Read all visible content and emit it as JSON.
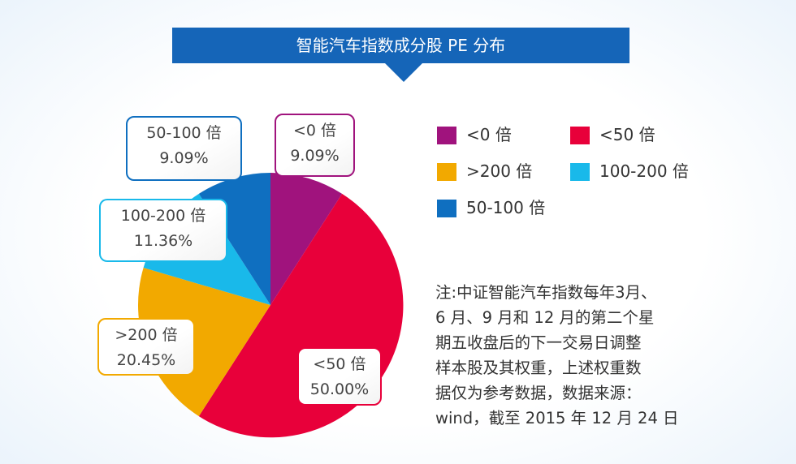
{
  "chart_data": {
    "type": "pie",
    "title": "智能汽车指数成分股 PE 分布",
    "slices": [
      {
        "label": "<0 倍",
        "value": 9.09,
        "value_text": "9.09%",
        "color": "#a0137d"
      },
      {
        "label": "<50 倍",
        "value": 50.0,
        "value_text": "50.00%",
        "color": "#e8003a"
      },
      {
        "label": ">200 倍",
        "value": 20.45,
        "value_text": "20.45%",
        "color": "#f2a900"
      },
      {
        "label": "100-200 倍",
        "value": 11.36,
        "value_text": "11.36%",
        "color": "#19b9ea"
      },
      {
        "label": "50-100 倍",
        "value": 9.09,
        "value_text": "9.09%",
        "color": "#0f6fc0"
      }
    ],
    "legend": {
      "placement": "right",
      "items": [
        {
          "label": "<0 倍",
          "color": "#a0137d"
        },
        {
          "label": "<50 倍",
          "color": "#e8003a"
        },
        {
          "label": ">200 倍",
          "color": "#f2a900"
        },
        {
          "label": "100-200 倍",
          "color": "#19b9ea"
        },
        {
          "label": "50-100 倍",
          "color": "#0f6fc0"
        }
      ]
    }
  },
  "note": {
    "lines": [
      "注:中证智能汽车指数每年3月、",
      "6 月、9 月和 12 月的第二个星",
      "期五收盘后的下一交易日调整",
      "样本股及其权重，上述权重数",
      "据仅为参考数据，数据来源：",
      "wind，截至 2015 年 12 月 24 日"
    ]
  }
}
